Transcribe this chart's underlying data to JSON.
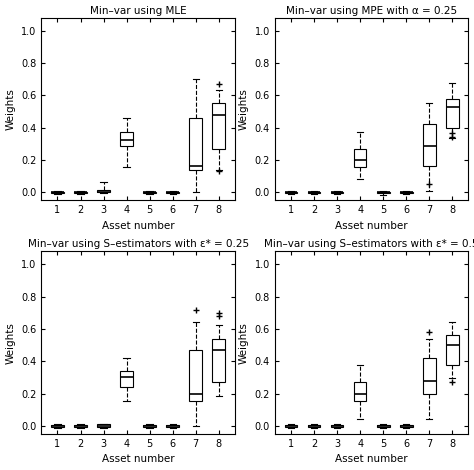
{
  "titles": [
    "Min–var using MLE",
    "Min–var using MPE with α = 0.25",
    "Min–var using S–estimators with ε* = 0.25",
    "Min–var using S–estimators with ε* = 0.5"
  ],
  "xlabel": "Asset number",
  "ylabel": "Weights",
  "ylim": [
    -0.05,
    1.08
  ],
  "yticks": [
    0.0,
    0.2,
    0.4,
    0.6,
    0.8,
    1.0
  ],
  "n_assets": 8,
  "background_color": "#ffffff",
  "panel_data": [
    {
      "boxes": [
        {
          "q1": -0.005,
          "median": 0.0,
          "q3": 0.005,
          "whislo": -0.01,
          "whishi": 0.01,
          "fliers": []
        },
        {
          "q1": -0.005,
          "median": 0.0,
          "q3": 0.005,
          "whislo": -0.01,
          "whishi": 0.01,
          "fliers": []
        },
        {
          "q1": 0.0,
          "median": 0.005,
          "q3": 0.015,
          "whislo": -0.005,
          "whishi": 0.065,
          "fliers": []
        },
        {
          "q1": 0.285,
          "median": 0.325,
          "q3": 0.375,
          "whislo": 0.155,
          "whishi": 0.46,
          "fliers": []
        },
        {
          "q1": -0.005,
          "median": 0.0,
          "q3": 0.005,
          "whislo": -0.01,
          "whishi": 0.01,
          "fliers": []
        },
        {
          "q1": -0.005,
          "median": 0.0,
          "q3": 0.005,
          "whislo": -0.01,
          "whishi": 0.01,
          "fliers": []
        },
        {
          "q1": 0.14,
          "median": 0.16,
          "q3": 0.46,
          "whislo": 0.0,
          "whishi": 0.7,
          "fliers": []
        },
        {
          "q1": 0.27,
          "median": 0.48,
          "q3": 0.555,
          "whislo": 0.14,
          "whishi": 0.63,
          "fliers": [
            0.67,
            0.13
          ]
        }
      ]
    },
    {
      "boxes": [
        {
          "q1": -0.005,
          "median": 0.0,
          "q3": 0.005,
          "whislo": -0.01,
          "whishi": 0.01,
          "fliers": []
        },
        {
          "q1": -0.005,
          "median": 0.0,
          "q3": 0.005,
          "whislo": -0.01,
          "whishi": 0.01,
          "fliers": []
        },
        {
          "q1": -0.005,
          "median": 0.0,
          "q3": 0.005,
          "whislo": -0.01,
          "whishi": 0.01,
          "fliers": []
        },
        {
          "q1": 0.155,
          "median": 0.2,
          "q3": 0.265,
          "whislo": 0.085,
          "whishi": 0.375,
          "fliers": []
        },
        {
          "q1": -0.005,
          "median": 0.0,
          "q3": 0.005,
          "whislo": -0.015,
          "whishi": 0.01,
          "fliers": []
        },
        {
          "q1": -0.005,
          "median": 0.0,
          "q3": 0.005,
          "whislo": -0.01,
          "whishi": 0.01,
          "fliers": []
        },
        {
          "q1": 0.165,
          "median": 0.285,
          "q3": 0.425,
          "whislo": 0.01,
          "whishi": 0.55,
          "fliers": [
            0.05
          ]
        },
        {
          "q1": 0.4,
          "median": 0.525,
          "q3": 0.575,
          "whislo": 0.335,
          "whishi": 0.675,
          "fliers": [
            0.37,
            0.34
          ]
        }
      ]
    },
    {
      "boxes": [
        {
          "q1": -0.005,
          "median": 0.0,
          "q3": 0.005,
          "whislo": -0.01,
          "whishi": 0.01,
          "fliers": []
        },
        {
          "q1": -0.005,
          "median": 0.0,
          "q3": 0.005,
          "whislo": -0.015,
          "whishi": 0.01,
          "fliers": []
        },
        {
          "q1": -0.005,
          "median": 0.0,
          "q3": 0.01,
          "whislo": -0.015,
          "whishi": 0.015,
          "fliers": []
        },
        {
          "q1": 0.24,
          "median": 0.3,
          "q3": 0.34,
          "whislo": 0.155,
          "whishi": 0.42,
          "fliers": []
        },
        {
          "q1": -0.005,
          "median": 0.0,
          "q3": 0.005,
          "whislo": -0.015,
          "whishi": 0.01,
          "fliers": []
        },
        {
          "q1": -0.005,
          "median": 0.0,
          "q3": 0.005,
          "whislo": -0.01,
          "whishi": 0.01,
          "fliers": []
        },
        {
          "q1": 0.155,
          "median": 0.2,
          "q3": 0.47,
          "whislo": 0.0,
          "whishi": 0.645,
          "fliers": [
            0.72
          ]
        },
        {
          "q1": 0.27,
          "median": 0.47,
          "q3": 0.535,
          "whislo": 0.185,
          "whishi": 0.625,
          "fliers": [
            0.68,
            0.7
          ]
        }
      ]
    },
    {
      "boxes": [
        {
          "q1": -0.005,
          "median": 0.0,
          "q3": 0.005,
          "whislo": -0.01,
          "whishi": 0.01,
          "fliers": []
        },
        {
          "q1": -0.005,
          "median": 0.0,
          "q3": 0.005,
          "whislo": -0.01,
          "whishi": 0.01,
          "fliers": []
        },
        {
          "q1": -0.005,
          "median": 0.0,
          "q3": 0.005,
          "whislo": -0.01,
          "whishi": 0.01,
          "fliers": []
        },
        {
          "q1": 0.155,
          "median": 0.2,
          "q3": 0.27,
          "whislo": 0.04,
          "whishi": 0.38,
          "fliers": []
        },
        {
          "q1": -0.005,
          "median": 0.0,
          "q3": 0.005,
          "whislo": -0.01,
          "whishi": 0.01,
          "fliers": []
        },
        {
          "q1": -0.005,
          "median": 0.0,
          "q3": 0.005,
          "whislo": -0.01,
          "whishi": 0.01,
          "fliers": []
        },
        {
          "q1": 0.2,
          "median": 0.275,
          "q3": 0.42,
          "whislo": 0.04,
          "whishi": 0.54,
          "fliers": [
            0.58
          ]
        },
        {
          "q1": 0.38,
          "median": 0.5,
          "q3": 0.565,
          "whislo": 0.295,
          "whishi": 0.645,
          "fliers": [
            0.27
          ]
        }
      ]
    }
  ]
}
